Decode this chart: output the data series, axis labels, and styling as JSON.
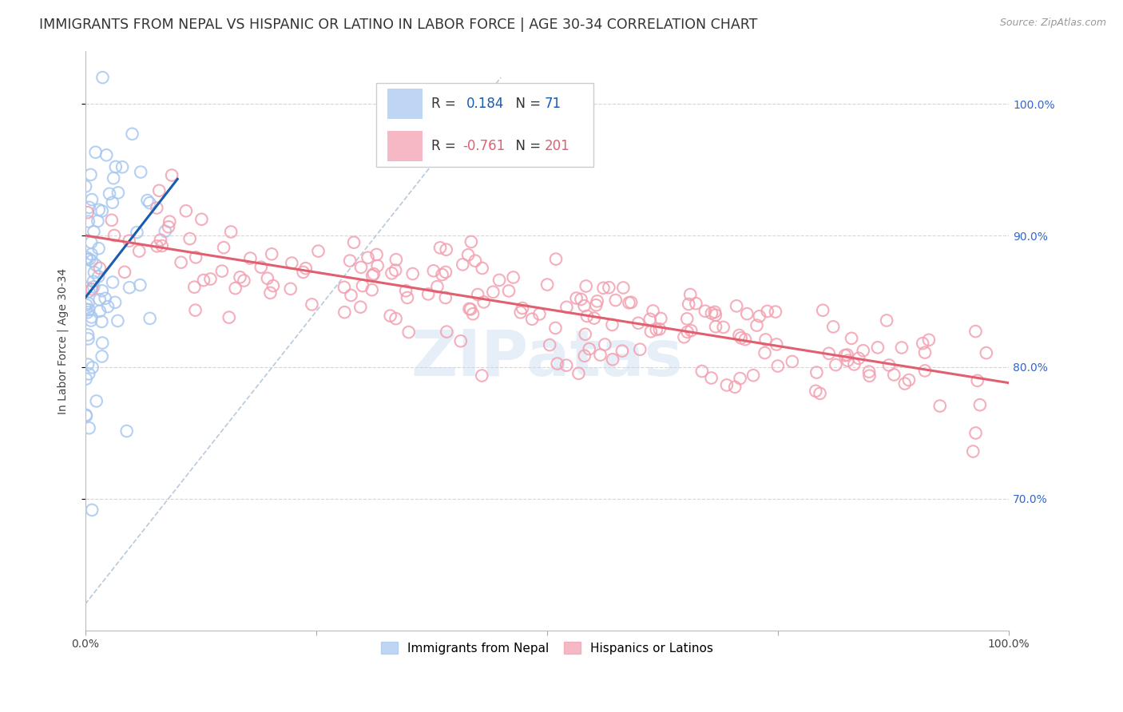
{
  "title": "IMMIGRANTS FROM NEPAL VS HISPANIC OR LATINO IN LABOR FORCE | AGE 30-34 CORRELATION CHART",
  "source": "Source: ZipAtlas.com",
  "ylabel": "In Labor Force | Age 30-34",
  "xlim": [
    0.0,
    1.0
  ],
  "ylim": [
    0.6,
    1.04
  ],
  "yticks": [
    0.7,
    0.8,
    0.9,
    1.0
  ],
  "ytick_labels": [
    "70.0%",
    "80.0%",
    "90.0%",
    "100.0%"
  ],
  "blue_R": 0.184,
  "blue_N": 71,
  "pink_R": -0.761,
  "pink_N": 201,
  "blue_color": "#A8C8F0",
  "pink_color": "#F4A0B0",
  "blue_line_color": "#1A5CB0",
  "pink_line_color": "#E06070",
  "ref_line_color": "#B0C4D8",
  "legend_label_blue": "Immigrants from Nepal",
  "legend_label_pink": "Hispanics or Latinos",
  "title_fontsize": 12.5,
  "axis_label_fontsize": 10,
  "tick_fontsize": 10,
  "right_tick_color": "#3366CC",
  "blue_seed": 42,
  "pink_seed": 123
}
